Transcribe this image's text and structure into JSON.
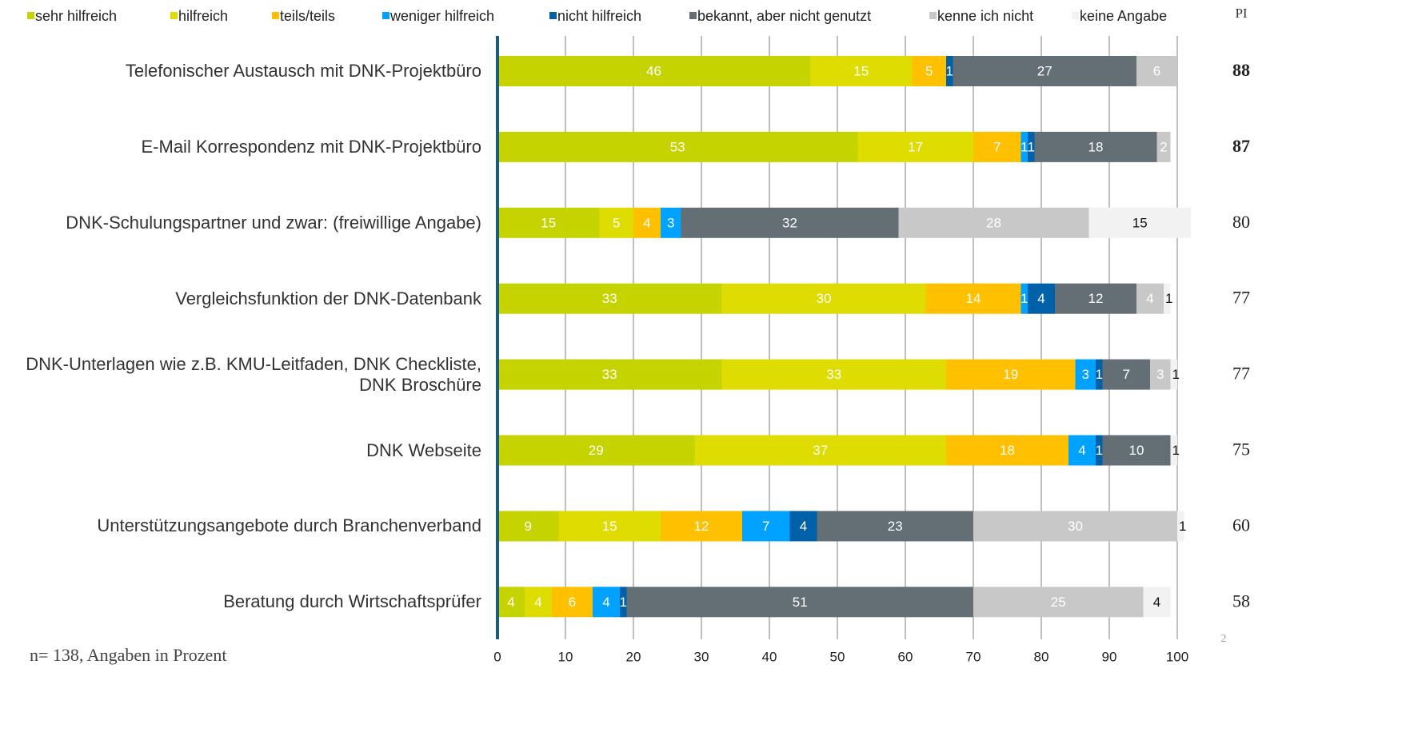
{
  "chart_data": {
    "type": "stacked_bar_horizontal",
    "categories": [
      "Telefonischer Austausch mit DNK-Projektbüro",
      "E-Mail Korrespondenz mit DNK-Projektbüro",
      "DNK-Schulungspartner und zwar: (freiwillige Angabe)",
      "Vergleichsfunktion der DNK-Datenbank",
      "DNK-Unterlagen wie z.B. KMU-Leitfaden, DNK Checkliste, DNK Broschüre",
      "DNK Webseite",
      "Unterstützungsangebote durch Branchenverband",
      "Beratung durch Wirtschaftsprüfer"
    ],
    "series": [
      {
        "name": "sehr hilfreich",
        "color": "#c5d300",
        "values": [
          46,
          53,
          15,
          33,
          33,
          29,
          9,
          4
        ]
      },
      {
        "name": "hilfreich",
        "color": "#dedc00",
        "values": [
          15,
          17,
          5,
          30,
          33,
          37,
          15,
          4
        ]
      },
      {
        "name": "teils/teils",
        "color": "#ffc000",
        "values": [
          5,
          7,
          4,
          14,
          19,
          18,
          12,
          6
        ]
      },
      {
        "name": "weniger hilfreich",
        "color": "#00a2ff",
        "values": [
          null,
          1,
          3,
          1,
          3,
          4,
          7,
          4
        ]
      },
      {
        "name": "nicht hilfreich",
        "color": "#0060a8",
        "values": [
          1,
          1,
          null,
          4,
          1,
          1,
          4,
          1
        ]
      },
      {
        "name": "bekannt, aber nicht genutzt",
        "color": "#636e75",
        "values": [
          27,
          18,
          32,
          12,
          7,
          10,
          23,
          51
        ]
      },
      {
        "name": "kenne ich nicht",
        "color": "#c8c8c8",
        "values": [
          6,
          2,
          28,
          4,
          3,
          null,
          30,
          25
        ]
      },
      {
        "name": "keine Angabe",
        "color": "#f2f2f2",
        "values": [
          null,
          null,
          15,
          1,
          1,
          1,
          1,
          4
        ]
      }
    ],
    "xlim": [
      0,
      100
    ],
    "xticks": [
      0,
      10,
      20,
      30,
      40,
      50,
      60,
      70,
      80,
      90,
      100
    ],
    "grid": true,
    "pi_header": "PI",
    "pi_values": [
      88,
      87,
      80,
      77,
      77,
      75,
      60,
      58
    ],
    "pi_bold": [
      true,
      true,
      false,
      false,
      false,
      false,
      false,
      false
    ],
    "footnote": "n= 138, Angaben in Prozent",
    "page_number": "2"
  }
}
